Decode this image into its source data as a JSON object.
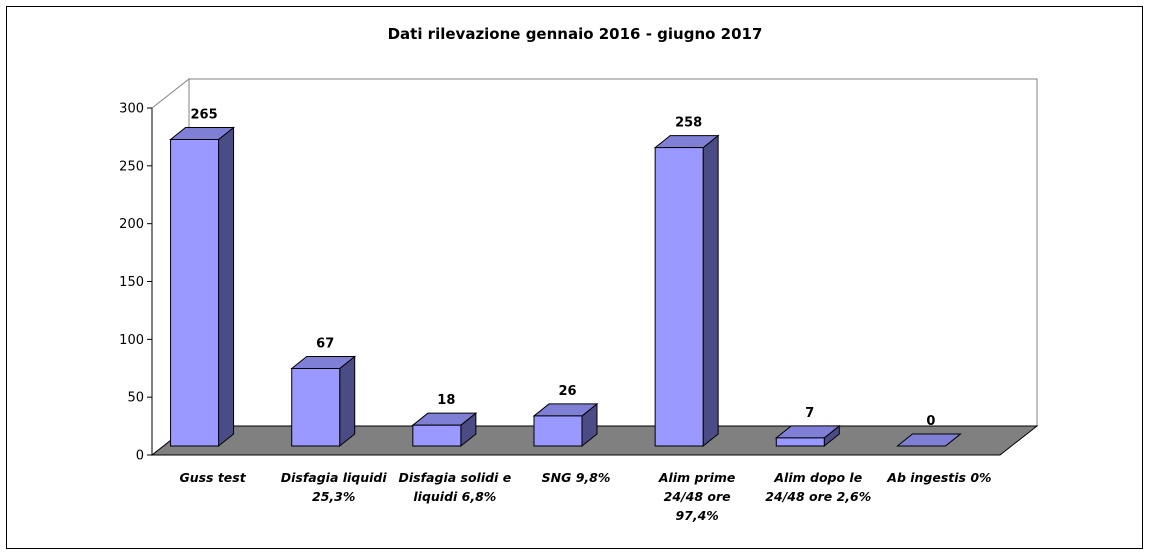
{
  "chart_data": {
    "type": "bar",
    "title": "Dati rilevazione gennaio 2016 - giugno 2017",
    "categories": [
      [
        "Guss test"
      ],
      [
        "Disfagia liquidi",
        "25,3%"
      ],
      [
        "Disfagia solidi e",
        "liquidi 6,8%"
      ],
      [
        "SNG 9,8%"
      ],
      [
        "Alim prime",
        "24/48 ore",
        "97,4%"
      ],
      [
        "Alim dopo le",
        "24/48 ore 2,6%"
      ],
      [
        "Ab ingestis 0%"
      ]
    ],
    "values": [
      265,
      67,
      18,
      26,
      258,
      7,
      0
    ],
    "data_labels": [
      "265",
      "67",
      "18",
      "26",
      "258",
      "7",
      "0"
    ],
    "yticks": [
      "0",
      "50",
      "100",
      "150",
      "200",
      "250",
      "300"
    ],
    "ylim": [
      0,
      300
    ],
    "grid": false,
    "legend": "none",
    "colors": {
      "bar_front": "#9999ff",
      "bar_side": "#4b4b86",
      "bar_top": "#7f7fd5",
      "floor": "#808080",
      "wall": "#ffffff",
      "axis": "#000000"
    }
  }
}
